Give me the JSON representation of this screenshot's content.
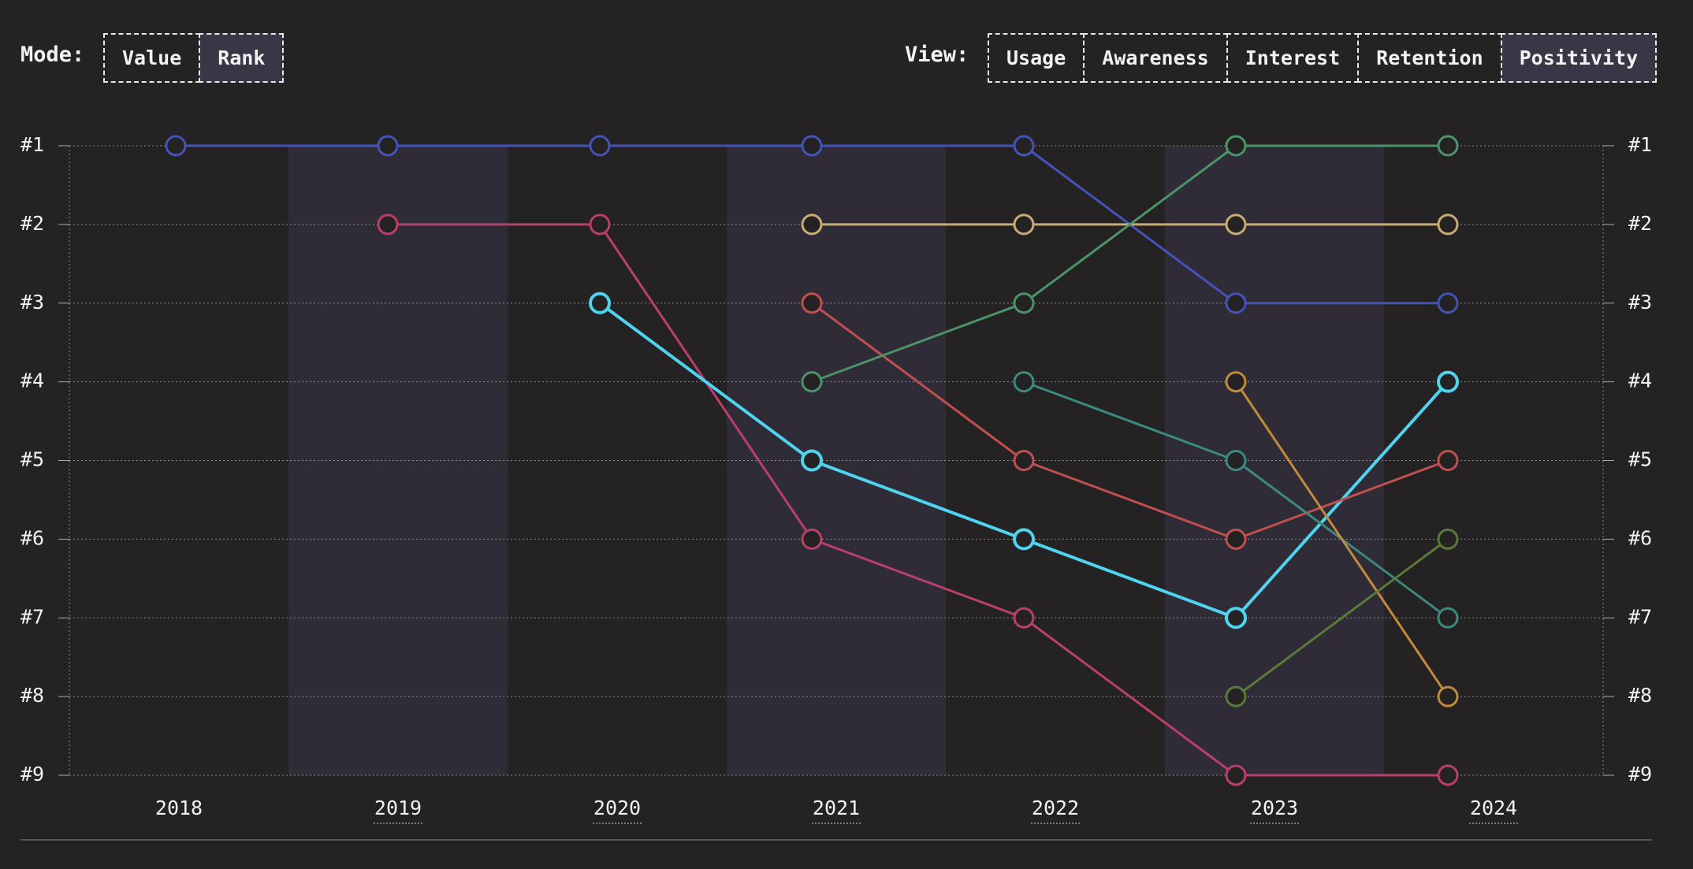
{
  "controls": {
    "mode_label": "Mode:",
    "modes": [
      "Value",
      "Rank"
    ],
    "selected_mode": 1,
    "view_label": "View:",
    "views": [
      "Usage",
      "Awareness",
      "Interest",
      "Retention",
      "Positivity"
    ],
    "selected_view": 4
  },
  "chart_data": {
    "type": "line",
    "categories": [
      "2018",
      "2019",
      "2020",
      "2021",
      "2022",
      "2023",
      "2024"
    ],
    "ylim": [
      1,
      9
    ],
    "y_inverted": true,
    "grid": true,
    "yticks": [
      {
        "value": 1,
        "label": "#1"
      },
      {
        "value": 2,
        "label": "#2"
      },
      {
        "value": 3,
        "label": "#3"
      },
      {
        "value": 4,
        "label": "#4"
      },
      {
        "value": 5,
        "label": "#5"
      },
      {
        "value": 6,
        "label": "#6"
      },
      {
        "value": 7,
        "label": "#7"
      },
      {
        "value": 8,
        "label": "#8"
      },
      {
        "value": 9,
        "label": "#9"
      }
    ],
    "series": [
      {
        "color": "#4353b8",
        "values": [
          1,
          1,
          1,
          1,
          1,
          3,
          3
        ]
      },
      {
        "color": "#b9406c",
        "values": [
          null,
          2,
          2,
          6,
          7,
          9,
          9
        ]
      },
      {
        "color": "#4fd3ee",
        "values": [
          null,
          null,
          3,
          5,
          6,
          7,
          4
        ]
      },
      {
        "color": "#c9ac74",
        "values": [
          null,
          null,
          null,
          2,
          2,
          2,
          2
        ]
      },
      {
        "color": "#c0504f",
        "values": [
          null,
          null,
          null,
          3,
          5,
          6,
          5
        ]
      },
      {
        "color": "#4b9467",
        "values": [
          null,
          null,
          null,
          4,
          3,
          1,
          1
        ]
      },
      {
        "color": "#3a8a80",
        "values": [
          null,
          null,
          null,
          null,
          4,
          5,
          7
        ]
      },
      {
        "color": "#c08b3c",
        "values": [
          null,
          null,
          null,
          null,
          null,
          4,
          8
        ]
      },
      {
        "color": "#5a7a3a",
        "values": [
          null,
          null,
          null,
          null,
          null,
          8,
          6
        ]
      }
    ]
  }
}
